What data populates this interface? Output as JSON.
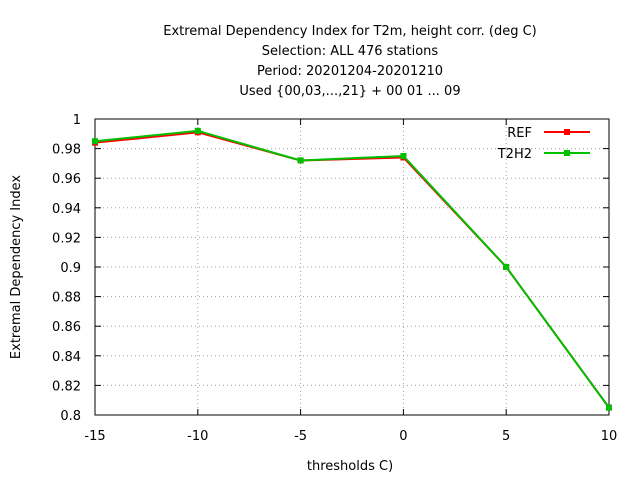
{
  "chart_data": {
    "type": "line",
    "title_lines": [
      "Extremal Dependency Index  for T2m, height corr. (deg C)",
      "Selection: ALL    476 stations",
      "Period: 20201204-20201210",
      "Used {00,03,...,21} + 00 01 ... 09"
    ],
    "xlabel": "thresholds C)",
    "ylabel": "Extremal Dependency Index",
    "x": [
      -15,
      -10,
      -5,
      0,
      5,
      10
    ],
    "xticks": [
      "-15",
      "-10",
      "-5",
      "0",
      "5",
      "10"
    ],
    "yticks": [
      "0.8",
      "0.82",
      "0.84",
      "0.86",
      "0.88",
      "0.9",
      "0.92",
      "0.94",
      "0.96",
      "0.98",
      "1"
    ],
    "xlim": [
      -15,
      10
    ],
    "ylim": [
      0.8,
      1.0
    ],
    "grid": true,
    "legend_position": "top-right",
    "series": [
      {
        "name": "REF",
        "color": "#ff0000",
        "values": [
          0.984,
          0.991,
          0.972,
          0.974,
          0.9,
          0.805
        ]
      },
      {
        "name": "T2H2",
        "color": "#00c000",
        "values": [
          0.985,
          0.992,
          0.972,
          0.975,
          0.9,
          0.805
        ]
      }
    ]
  }
}
